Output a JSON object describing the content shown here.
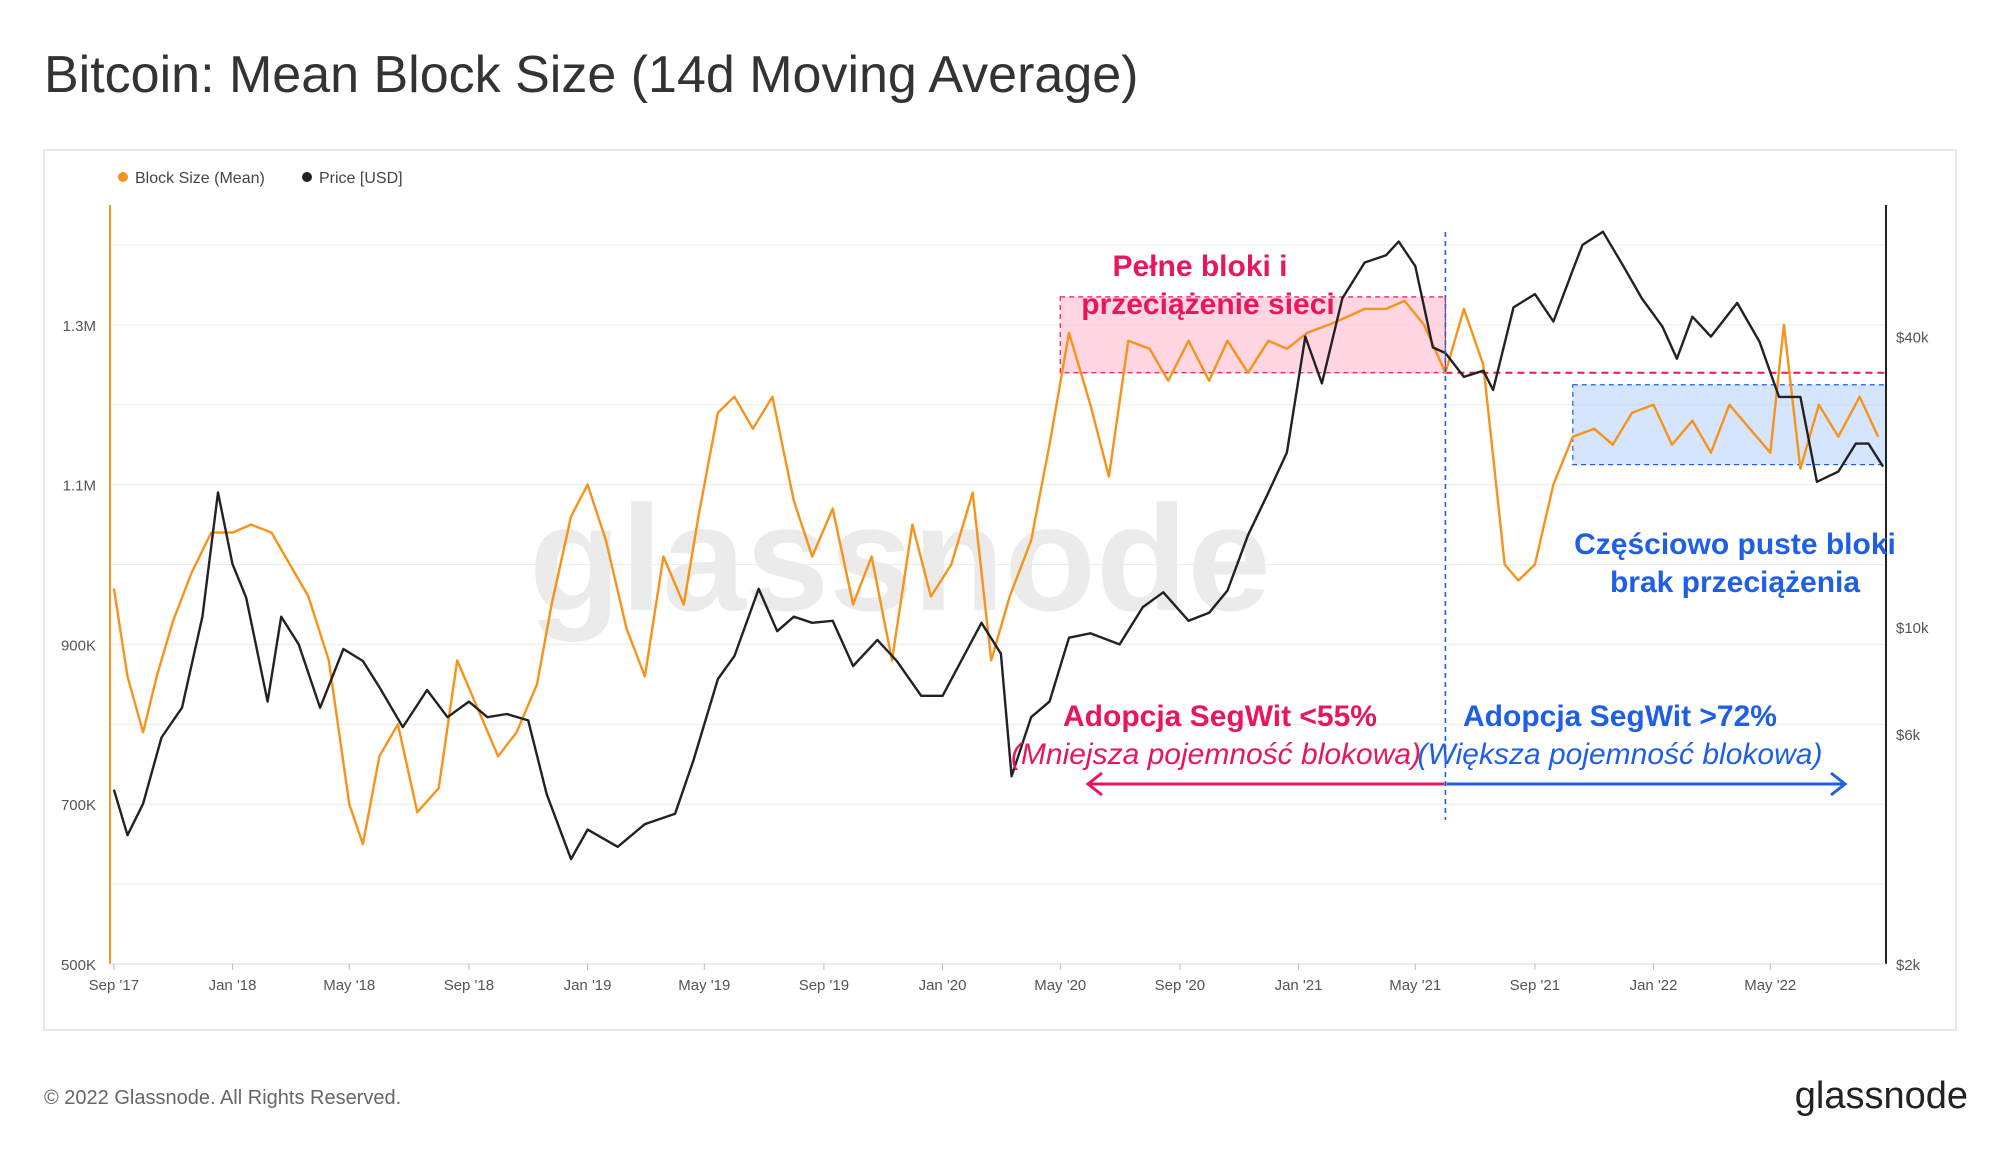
{
  "page": {
    "title": "Bitcoin: Mean Block Size (14d Moving Average)",
    "footer": "© 2022 Glassnode. All Rights Reserved.",
    "brand": "glassnode",
    "watermark": "glassnode"
  },
  "colors": {
    "block_size": "#f7931a",
    "price": "#222222",
    "pink": "#e8175d",
    "blue": "#1f5fe6",
    "grid": "#ececec",
    "tick": "#555555"
  },
  "chart_data": {
    "type": "line",
    "legend": [
      {
        "label": "Block Size (Mean)",
        "color": "#f7931a"
      },
      {
        "label": "Price [USD]",
        "color": "#222222"
      }
    ],
    "legend_position": "top-left",
    "grid": true,
    "x_range": [
      "2017-08-28",
      "2022-08-28"
    ],
    "x_ticks": [
      "Sep '17",
      "Jan '18",
      "May '18",
      "Sep '18",
      "Jan '19",
      "May '19",
      "Sep '19",
      "Jan '20",
      "May '20",
      "Sep '20",
      "Jan '21",
      "May '21",
      "Sep '21",
      "Jan '22",
      "May '22"
    ],
    "y_left": {
      "ticks": [
        "500K",
        "700K",
        "900K",
        "1.1M",
        "1.3M"
      ],
      "tick_values": [
        500000,
        700000,
        900000,
        1100000,
        1300000
      ],
      "range": [
        500000,
        1450000
      ]
    },
    "y_right": {
      "scale": "log",
      "ticks": [
        "$2k",
        "$6k",
        "$10k",
        "$40k"
      ],
      "tick_values": [
        2000,
        6000,
        10000,
        40000
      ],
      "range": [
        2000,
        75000
      ]
    },
    "series": [
      {
        "name": "Block Size (Mean)",
        "axis": "left",
        "x": [
          "2017-09-01",
          "2017-09-15",
          "2017-10-01",
          "2017-10-15",
          "2017-11-01",
          "2017-11-20",
          "2017-12-10",
          "2018-01-01",
          "2018-01-20",
          "2018-02-10",
          "2018-03-01",
          "2018-03-20",
          "2018-04-10",
          "2018-05-01",
          "2018-05-15",
          "2018-06-01",
          "2018-06-20",
          "2018-07-10",
          "2018-08-01",
          "2018-08-20",
          "2018-09-10",
          "2018-10-01",
          "2018-10-20",
          "2018-11-10",
          "2018-11-25",
          "2018-12-15",
          "2019-01-01",
          "2019-01-20",
          "2019-02-10",
          "2019-03-01",
          "2019-03-20",
          "2019-04-10",
          "2019-04-25",
          "2019-05-15",
          "2019-06-01",
          "2019-06-20",
          "2019-07-10",
          "2019-08-01",
          "2019-08-20",
          "2019-09-10",
          "2019-10-01",
          "2019-10-20",
          "2019-11-10",
          "2019-12-01",
          "2019-12-20",
          "2020-01-10",
          "2020-02-01",
          "2020-02-20",
          "2020-03-10",
          "2020-04-01",
          "2020-04-20",
          "2020-05-10",
          "2020-06-01",
          "2020-06-20",
          "2020-07-10",
          "2020-08-01",
          "2020-08-20",
          "2020-09-10",
          "2020-10-01",
          "2020-10-20",
          "2020-11-10",
          "2020-12-01",
          "2020-12-20",
          "2021-01-10",
          "2021-02-01",
          "2021-02-20",
          "2021-03-10",
          "2021-04-01",
          "2021-04-20",
          "2021-05-10",
          "2021-06-01",
          "2021-06-20",
          "2021-07-10",
          "2021-08-01",
          "2021-08-15",
          "2021-09-01",
          "2021-09-20",
          "2021-10-10",
          "2021-11-01",
          "2021-11-20",
          "2021-12-10",
          "2022-01-01",
          "2022-01-20",
          "2022-02-10",
          "2022-03-01",
          "2022-03-20",
          "2022-04-10",
          "2022-05-01",
          "2022-05-15",
          "2022-06-01",
          "2022-06-20",
          "2022-07-10",
          "2022-08-01",
          "2022-08-20"
        ],
        "values": [
          970000,
          860000,
          790000,
          860000,
          930000,
          990000,
          1040000,
          1040000,
          1050000,
          1040000,
          1000000,
          960000,
          880000,
          700000,
          650000,
          760000,
          800000,
          690000,
          720000,
          880000,
          820000,
          760000,
          790000,
          850000,
          950000,
          1060000,
          1100000,
          1030000,
          920000,
          860000,
          1010000,
          950000,
          1060000,
          1190000,
          1210000,
          1170000,
          1210000,
          1080000,
          1010000,
          1070000,
          950000,
          1010000,
          880000,
          1050000,
          960000,
          1000000,
          1090000,
          880000,
          960000,
          1030000,
          1150000,
          1290000,
          1200000,
          1110000,
          1280000,
          1270000,
          1230000,
          1280000,
          1230000,
          1280000,
          1240000,
          1280000,
          1270000,
          1290000,
          1300000,
          1310000,
          1320000,
          1320000,
          1330000,
          1300000,
          1240000,
          1320000,
          1250000,
          1000000,
          980000,
          1000000,
          1100000,
          1160000,
          1170000,
          1150000,
          1190000,
          1200000,
          1150000,
          1180000,
          1140000,
          1200000,
          1170000,
          1140000,
          1300000,
          1120000,
          1200000,
          1160000,
          1210000,
          1160000
        ]
      },
      {
        "name": "Price [USD]",
        "axis": "right",
        "x": [
          "2017-09-01",
          "2017-09-15",
          "2017-10-01",
          "2017-10-20",
          "2017-11-10",
          "2017-12-01",
          "2017-12-17",
          "2018-01-01",
          "2018-01-15",
          "2018-02-06",
          "2018-02-20",
          "2018-03-10",
          "2018-04-01",
          "2018-04-25",
          "2018-05-15",
          "2018-06-01",
          "2018-06-25",
          "2018-07-20",
          "2018-08-10",
          "2018-09-01",
          "2018-09-20",
          "2018-10-10",
          "2018-11-01",
          "2018-11-20",
          "2018-12-15",
          "2019-01-01",
          "2019-02-01",
          "2019-03-01",
          "2019-04-01",
          "2019-04-20",
          "2019-05-15",
          "2019-06-01",
          "2019-06-26",
          "2019-07-15",
          "2019-08-01",
          "2019-08-20",
          "2019-09-10",
          "2019-10-01",
          "2019-10-26",
          "2019-11-15",
          "2019-12-10",
          "2020-01-01",
          "2020-02-10",
          "2020-03-01",
          "2020-03-12",
          "2020-04-01",
          "2020-04-20",
          "2020-05-10",
          "2020-06-01",
          "2020-07-01",
          "2020-07-25",
          "2020-08-15",
          "2020-09-10",
          "2020-10-01",
          "2020-10-20",
          "2020-11-10",
          "2020-12-01",
          "2020-12-20",
          "2021-01-08",
          "2021-01-25",
          "2021-02-15",
          "2021-03-10",
          "2021-04-01",
          "2021-04-14",
          "2021-05-01",
          "2021-05-19",
          "2021-06-01",
          "2021-06-20",
          "2021-07-10",
          "2021-07-20",
          "2021-08-10",
          "2021-09-01",
          "2021-09-20",
          "2021-10-10",
          "2021-10-20",
          "2021-11-10",
          "2021-12-01",
          "2021-12-20",
          "2022-01-10",
          "2022-01-25",
          "2022-02-10",
          "2022-03-01",
          "2022-03-28",
          "2022-04-20",
          "2022-05-10",
          "2022-06-01",
          "2022-06-18",
          "2022-07-10",
          "2022-07-28",
          "2022-08-10",
          "2022-08-25"
        ],
        "values": [
          4600,
          3700,
          4300,
          5900,
          6800,
          10500,
          19000,
          13500,
          11500,
          7000,
          10500,
          9200,
          6800,
          9000,
          8500,
          7500,
          6200,
          7400,
          6500,
          7000,
          6500,
          6600,
          6400,
          4500,
          3300,
          3800,
          3500,
          3900,
          4100,
          5300,
          7800,
          8700,
          12000,
          9800,
          10500,
          10200,
          10300,
          8300,
          9400,
          8500,
          7200,
          7200,
          10200,
          8800,
          4900,
          6500,
          7000,
          9500,
          9700,
          9200,
          11000,
          11800,
          10300,
          10700,
          11900,
          15500,
          19000,
          23000,
          40000,
          32000,
          48000,
          57000,
          59000,
          63000,
          56000,
          38000,
          37000,
          33000,
          34000,
          31000,
          46000,
          49000,
          43000,
          55000,
          62000,
          66000,
          56000,
          48000,
          42000,
          36000,
          44000,
          40000,
          47000,
          39000,
          30000,
          30000,
          20000,
          21000,
          24000,
          24000,
          21500
        ]
      }
    ],
    "annotations": [
      {
        "text": "Pełne bloki i",
        "color": "#e8175d"
      },
      {
        "text": "przeciążenie sieci",
        "color": "#e8175d"
      },
      {
        "text": "Częściowo puste bloki",
        "color": "#1f5fe6"
      },
      {
        "text": "brak przeciążenia",
        "color": "#1f5fe6"
      },
      {
        "text": "Adopcja SegWit <55%",
        "color": "#e8175d"
      },
      {
        "text": "(Mniejsza pojemność blokowa)",
        "color": "#e8175d"
      },
      {
        "text": "Adopcja SegWit >72%",
        "color": "#1f5fe6"
      },
      {
        "text": "(Większa pojemność blokowa)",
        "color": "#1f5fe6"
      }
    ],
    "divider_date": "2021-06-01",
    "pink_band": {
      "from": "2020-05-01",
      "to": "2021-06-01",
      "y_from": 1240000,
      "y_to": 1335000
    },
    "blue_band": {
      "from": "2021-10-10",
      "to": "2022-08-28",
      "y_from": 1125000,
      "y_to": 1225000
    },
    "pink_dash_level": 1240000
  }
}
